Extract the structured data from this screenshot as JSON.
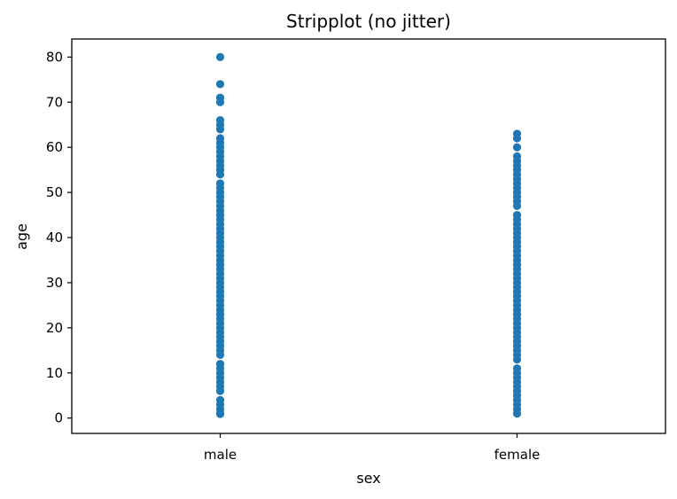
{
  "chart_data": {
    "type": "scatter",
    "title": "Stripplot (no jitter)",
    "xlabel": "sex",
    "ylabel": "age",
    "categories": [
      "male",
      "female"
    ],
    "ylim": [
      -3.4,
      84.0
    ],
    "yticks": [
      0,
      10,
      20,
      30,
      40,
      50,
      60,
      70,
      80
    ],
    "grid": false,
    "legend": "none",
    "marker_color": "#1f77b4",
    "series": [
      {
        "values": [
          [
            0.92,
            1,
            2,
            3,
            4,
            6,
            7,
            8,
            9,
            10,
            11,
            12,
            14,
            15,
            16,
            17,
            18,
            19,
            20,
            21,
            22,
            23,
            24,
            25,
            26,
            27,
            28,
            29,
            30,
            31,
            32,
            33,
            34,
            35,
            36,
            37,
            38,
            39,
            40,
            41,
            42,
            43,
            44,
            45,
            46,
            47,
            48,
            49,
            50,
            51,
            52,
            54,
            55,
            56,
            57,
            58,
            59,
            60,
            61,
            62,
            64,
            65,
            66,
            70,
            71,
            74,
            80
          ],
          [
            1,
            2,
            3,
            4,
            5,
            6,
            7,
            8,
            9,
            10,
            11,
            13,
            14,
            15,
            16,
            17,
            18,
            19,
            20,
            21,
            22,
            23,
            24,
            25,
            26,
            27,
            28,
            29,
            30,
            31,
            32,
            33,
            34,
            35,
            36,
            37,
            38,
            39,
            40,
            41,
            42,
            43,
            44,
            45,
            47,
            48,
            49,
            50,
            51,
            52,
            53,
            54,
            55,
            56,
            57,
            58,
            60,
            62,
            63
          ]
        ]
      }
    ]
  }
}
